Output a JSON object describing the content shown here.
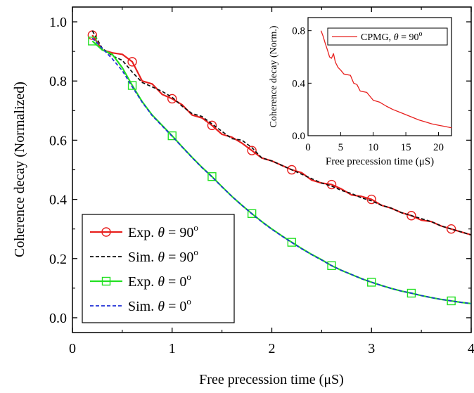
{
  "chart_data": [
    {
      "type": "line",
      "xlabel": "Free precession time (μS)",
      "ylabel": "Coherence decay (Normalized)",
      "xlim": [
        0,
        4
      ],
      "ylim": [
        -0.05,
        1.05
      ],
      "xticks": [
        0,
        1,
        2,
        3,
        4
      ],
      "xtick_labels": [
        "0",
        "1",
        "2",
        "3",
        "4"
      ],
      "yticks": [
        0.0,
        0.2,
        0.4,
        0.6,
        0.8,
        1.0
      ],
      "ytick_labels": [
        "0.0",
        "0.2",
        "0.4",
        "0.6",
        "0.8",
        "1.0"
      ],
      "legend_position": "bottom-left",
      "series": [
        {
          "name": "Exp. θ = 90°",
          "legend_label": "Exp.",
          "legend_math": "θ = 90",
          "legend_sup": "o",
          "color": "#e8201e",
          "style": "solid",
          "marker": "circle",
          "x": [
            0.2,
            0.3,
            0.4,
            0.5,
            0.6,
            0.7,
            0.8,
            0.9,
            1.0,
            1.1,
            1.2,
            1.3,
            1.4,
            1.5,
            1.6,
            1.7,
            1.8,
            1.9,
            2.0,
            2.1,
            2.2,
            2.3,
            2.4,
            2.5,
            2.6,
            2.7,
            2.8,
            2.9,
            3.0,
            3.1,
            3.2,
            3.3,
            3.4,
            3.5,
            3.6,
            3.7,
            3.8,
            3.9,
            4.0
          ],
          "values": [
            0.955,
            0.905,
            0.895,
            0.89,
            0.865,
            0.8,
            0.79,
            0.755,
            0.74,
            0.72,
            0.685,
            0.675,
            0.65,
            0.62,
            0.61,
            0.59,
            0.565,
            0.54,
            0.53,
            0.515,
            0.5,
            0.49,
            0.465,
            0.455,
            0.45,
            0.435,
            0.415,
            0.41,
            0.4,
            0.38,
            0.37,
            0.355,
            0.345,
            0.33,
            0.325,
            0.31,
            0.3,
            0.29,
            0.28
          ],
          "marker_x": [
            0.2,
            0.6,
            1.0,
            1.4,
            1.8,
            2.2,
            2.6,
            3.0,
            3.4,
            3.8
          ],
          "marker_values": [
            0.955,
            0.865,
            0.74,
            0.65,
            0.565,
            0.5,
            0.45,
            0.4,
            0.345,
            0.3
          ]
        },
        {
          "name": "Sim. θ = 90°",
          "legend_label": "Sim.",
          "legend_math": "θ = 90",
          "legend_sup": "o",
          "color": "#111111",
          "style": "dashed",
          "marker": "none",
          "x": [
            0.2,
            0.3,
            0.4,
            0.5,
            0.6,
            0.7,
            0.8,
            0.9,
            1.0,
            1.1,
            1.2,
            1.3,
            1.4,
            1.5,
            1.6,
            1.7,
            1.8,
            1.9,
            2.0,
            2.1,
            2.2,
            2.3,
            2.4,
            2.5,
            2.6,
            2.7,
            2.8,
            2.9,
            3.0,
            3.1,
            3.2,
            3.3,
            3.4,
            3.5,
            3.6,
            3.7,
            3.8,
            3.9,
            4.0
          ],
          "values": [
            0.97,
            0.91,
            0.885,
            0.87,
            0.83,
            0.795,
            0.78,
            0.765,
            0.745,
            0.715,
            0.69,
            0.68,
            0.655,
            0.63,
            0.605,
            0.6,
            0.575,
            0.54,
            0.53,
            0.515,
            0.5,
            0.485,
            0.47,
            0.455,
            0.445,
            0.43,
            0.42,
            0.405,
            0.395,
            0.38,
            0.37,
            0.355,
            0.345,
            0.335,
            0.325,
            0.31,
            0.3,
            0.29,
            0.28
          ]
        },
        {
          "name": "Exp. θ = 0°",
          "legend_label": "Exp.",
          "legend_math": "θ = 0",
          "legend_sup": "o",
          "color": "#22e022",
          "style": "solid",
          "marker": "square",
          "x": [
            0.2,
            0.3,
            0.4,
            0.5,
            0.6,
            0.7,
            0.8,
            0.9,
            1.0,
            1.1,
            1.2,
            1.3,
            1.4,
            1.5,
            1.6,
            1.7,
            1.8,
            1.9,
            2.0,
            2.1,
            2.2,
            2.3,
            2.4,
            2.5,
            2.6,
            2.7,
            2.8,
            2.9,
            3.0,
            3.1,
            3.2,
            3.3,
            3.4,
            3.5,
            3.6,
            3.7,
            3.8,
            3.9,
            4.0
          ],
          "values": [
            0.935,
            0.905,
            0.89,
            0.845,
            0.785,
            0.73,
            0.685,
            0.65,
            0.615,
            0.578,
            0.542,
            0.508,
            0.477,
            0.443,
            0.41,
            0.38,
            0.352,
            0.325,
            0.3,
            0.277,
            0.255,
            0.234,
            0.214,
            0.196,
            0.176,
            0.16,
            0.146,
            0.132,
            0.12,
            0.109,
            0.099,
            0.09,
            0.083,
            0.075,
            0.068,
            0.062,
            0.057,
            0.052,
            0.048
          ],
          "marker_x": [
            0.2,
            0.6,
            1.0,
            1.4,
            1.8,
            2.2,
            2.6,
            3.0,
            3.4,
            3.8
          ],
          "marker_values": [
            0.935,
            0.785,
            0.615,
            0.477,
            0.352,
            0.255,
            0.176,
            0.12,
            0.083,
            0.057
          ]
        },
        {
          "name": "Sim. θ = 0°",
          "legend_label": "Sim.",
          "legend_math": "θ = 0",
          "legend_sup": "o",
          "color": "#1f2fd6",
          "style": "dashed",
          "marker": "none",
          "x": [
            0.2,
            0.3,
            0.4,
            0.5,
            0.6,
            0.7,
            0.8,
            0.9,
            1.0,
            1.1,
            1.2,
            1.3,
            1.4,
            1.5,
            1.6,
            1.7,
            1.8,
            1.9,
            2.0,
            2.1,
            2.2,
            2.3,
            2.4,
            2.5,
            2.6,
            2.7,
            2.8,
            2.9,
            3.0,
            3.1,
            3.2,
            3.3,
            3.4,
            3.5,
            3.6,
            3.7,
            3.8,
            3.9,
            4.0
          ],
          "values": [
            0.945,
            0.91,
            0.875,
            0.835,
            0.78,
            0.728,
            0.683,
            0.648,
            0.613,
            0.577,
            0.541,
            0.507,
            0.476,
            0.442,
            0.41,
            0.38,
            0.351,
            0.324,
            0.299,
            0.276,
            0.254,
            0.233,
            0.213,
            0.195,
            0.176,
            0.16,
            0.146,
            0.132,
            0.12,
            0.109,
            0.099,
            0.09,
            0.083,
            0.075,
            0.068,
            0.062,
            0.057,
            0.052,
            0.048
          ]
        }
      ]
    },
    {
      "type": "line",
      "xlabel": "Free precession time (μS)",
      "ylabel": "Coherence decay (Norm.)",
      "xlim": [
        0,
        22
      ],
      "ylim": [
        0,
        0.9
      ],
      "xticks": [
        0,
        5,
        10,
        15,
        20
      ],
      "xtick_labels": [
        "0",
        "5",
        "10",
        "15",
        "20"
      ],
      "yticks": [
        0.0,
        0.4,
        0.8
      ],
      "ytick_labels": [
        "0.0",
        "0.4",
        "0.8"
      ],
      "legend_position": "top-right",
      "series": [
        {
          "name": "CPMG, θ = 90°",
          "legend_label": "CPMG,",
          "legend_math": "θ = 90",
          "legend_sup": "o",
          "color": "#e8201e",
          "style": "solid",
          "marker": "none",
          "x": [
            2.0,
            2.3,
            2.6,
            3.0,
            3.3,
            3.6,
            3.9,
            4.2,
            4.6,
            5.0,
            5.5,
            6.0,
            6.5,
            7.0,
            7.5,
            8.0,
            8.5,
            9.0,
            9.5,
            10.0,
            11.0,
            12.0,
            13.0,
            14.0,
            15.0,
            16.0,
            17.0,
            18.0,
            19.0,
            20.0,
            21.0,
            22.0
          ],
          "values": [
            0.8,
            0.76,
            0.71,
            0.65,
            0.6,
            0.59,
            0.625,
            0.56,
            0.52,
            0.5,
            0.47,
            0.465,
            0.46,
            0.4,
            0.39,
            0.34,
            0.335,
            0.33,
            0.3,
            0.27,
            0.255,
            0.225,
            0.2,
            0.18,
            0.16,
            0.14,
            0.12,
            0.105,
            0.09,
            0.08,
            0.07,
            0.06
          ]
        }
      ]
    }
  ]
}
